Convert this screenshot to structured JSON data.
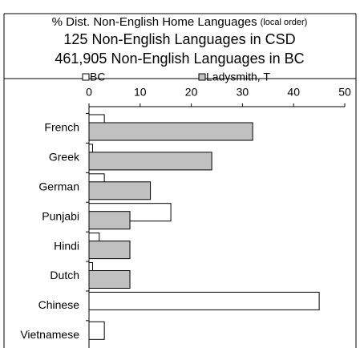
{
  "chart_data": {
    "type": "hbar",
    "title": "% Dist. Non-English Home Languages",
    "title_note": "(local order)",
    "subtitles": [
      "125 Non-English Languages in CSD",
      "461,905 Non-English Languages in BC"
    ],
    "categories": [
      "French",
      "Greek",
      "German",
      "Punjabi",
      "Hindi",
      "Dutch",
      "Chinese",
      "Vietnamese"
    ],
    "series": [
      {
        "name": "BC",
        "color": "#ffffff",
        "values": [
          3,
          0.7,
          3,
          16,
          2,
          0.7,
          45,
          3
        ]
      },
      {
        "name": "Ladysmith, T",
        "color": "#c0c0c0",
        "values": [
          32,
          24,
          12,
          8,
          8,
          8,
          0,
          0
        ]
      }
    ],
    "xlim": [
      0,
      50
    ],
    "xticks": [
      0,
      10,
      20,
      30,
      40,
      50
    ],
    "legend": "top"
  }
}
